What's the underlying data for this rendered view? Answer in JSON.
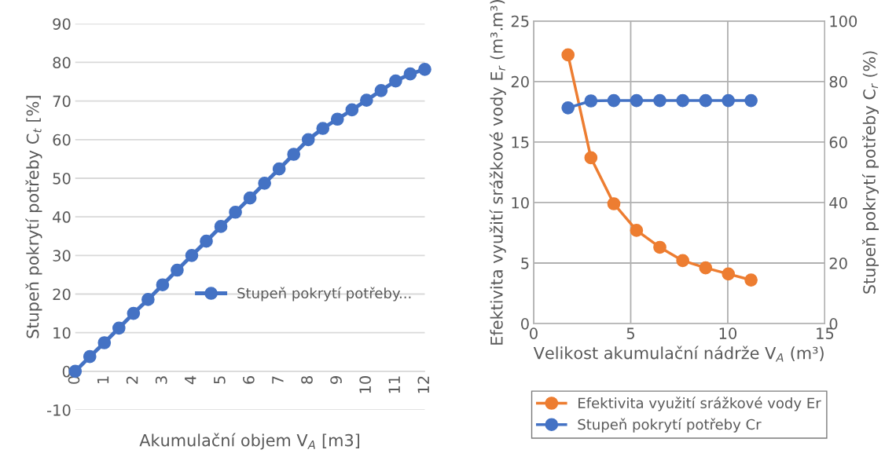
{
  "chart_data": [
    {
      "type": "line",
      "xlabel": "Akumulační objem V$_{A}$ [m3]",
      "ylabel": "Stupeň pokrytí potřeby C$_{t}$ [%]",
      "x": [
        0,
        0.5,
        1,
        1.5,
        2,
        2.5,
        3,
        3.5,
        4,
        4.5,
        5,
        5.5,
        6,
        6.5,
        7,
        7.5,
        8,
        8.5,
        9,
        9.5,
        10,
        10.5,
        11,
        11.5,
        12
      ],
      "series": [
        {
          "name": "Stupeň pokrytí potřeby...",
          "color": "#4472c4",
          "values": [
            0,
            3.8,
            7.4,
            11.2,
            15,
            18.6,
            22.4,
            26.2,
            30,
            33.7,
            37.5,
            41.2,
            44.9,
            48.7,
            52.4,
            56.2,
            60,
            62.9,
            65.3,
            67.7,
            70.2,
            72.7,
            75.2,
            77,
            78.2
          ]
        }
      ],
      "xlim": [
        0,
        12
      ],
      "xticks": [
        0,
        1,
        2,
        3,
        4,
        5,
        6,
        7,
        8,
        9,
        10,
        11,
        12
      ],
      "ylim": [
        -10,
        90
      ],
      "yticks": [
        -10,
        0,
        10,
        20,
        30,
        40,
        50,
        60,
        70,
        80,
        90
      ],
      "grid": "y",
      "legend": "right",
      "marker": "circle",
      "line_style": "solid"
    },
    {
      "type": "line",
      "xlabel": "Velikost akumulační nádrže V$_{A}$ (m³)",
      "ylabel": "Efektivita využití srážkové vody E$_{r}$ (m³.m³)",
      "y2label": "Stupeň pokrytí potřeby C$_{r}$ (%)",
      "x": [
        1.77,
        2.95,
        4.13,
        5.3,
        6.5,
        7.68,
        8.86,
        10.03,
        11.2
      ],
      "series": [
        {
          "name": "Efektivita využití srážkové vody Er",
          "color": "#ed7d31",
          "values": [
            22.2,
            13.7,
            9.9,
            7.7,
            6.3,
            5.2,
            4.6,
            4.1,
            3.6
          ]
        },
        {
          "name": "Stupeň pokrytí potřeby Cr",
          "color": "#4472c4",
          "axis": "y2",
          "values": [
            71.3,
            73.6,
            73.7,
            73.7,
            73.7,
            73.7,
            73.7,
            73.7,
            73.7
          ]
        }
      ],
      "xlim": [
        0,
        15
      ],
      "xticks": [
        0,
        5,
        10,
        15
      ],
      "ylim": [
        0,
        25
      ],
      "yticks": [
        0,
        5,
        10,
        15,
        20,
        25
      ],
      "y2lim": [
        0,
        100
      ],
      "y2ticks": [
        0,
        20,
        40,
        60,
        80,
        100
      ],
      "grid": true,
      "legend": "bottom",
      "marker": "circle",
      "line_style": "solid"
    }
  ]
}
